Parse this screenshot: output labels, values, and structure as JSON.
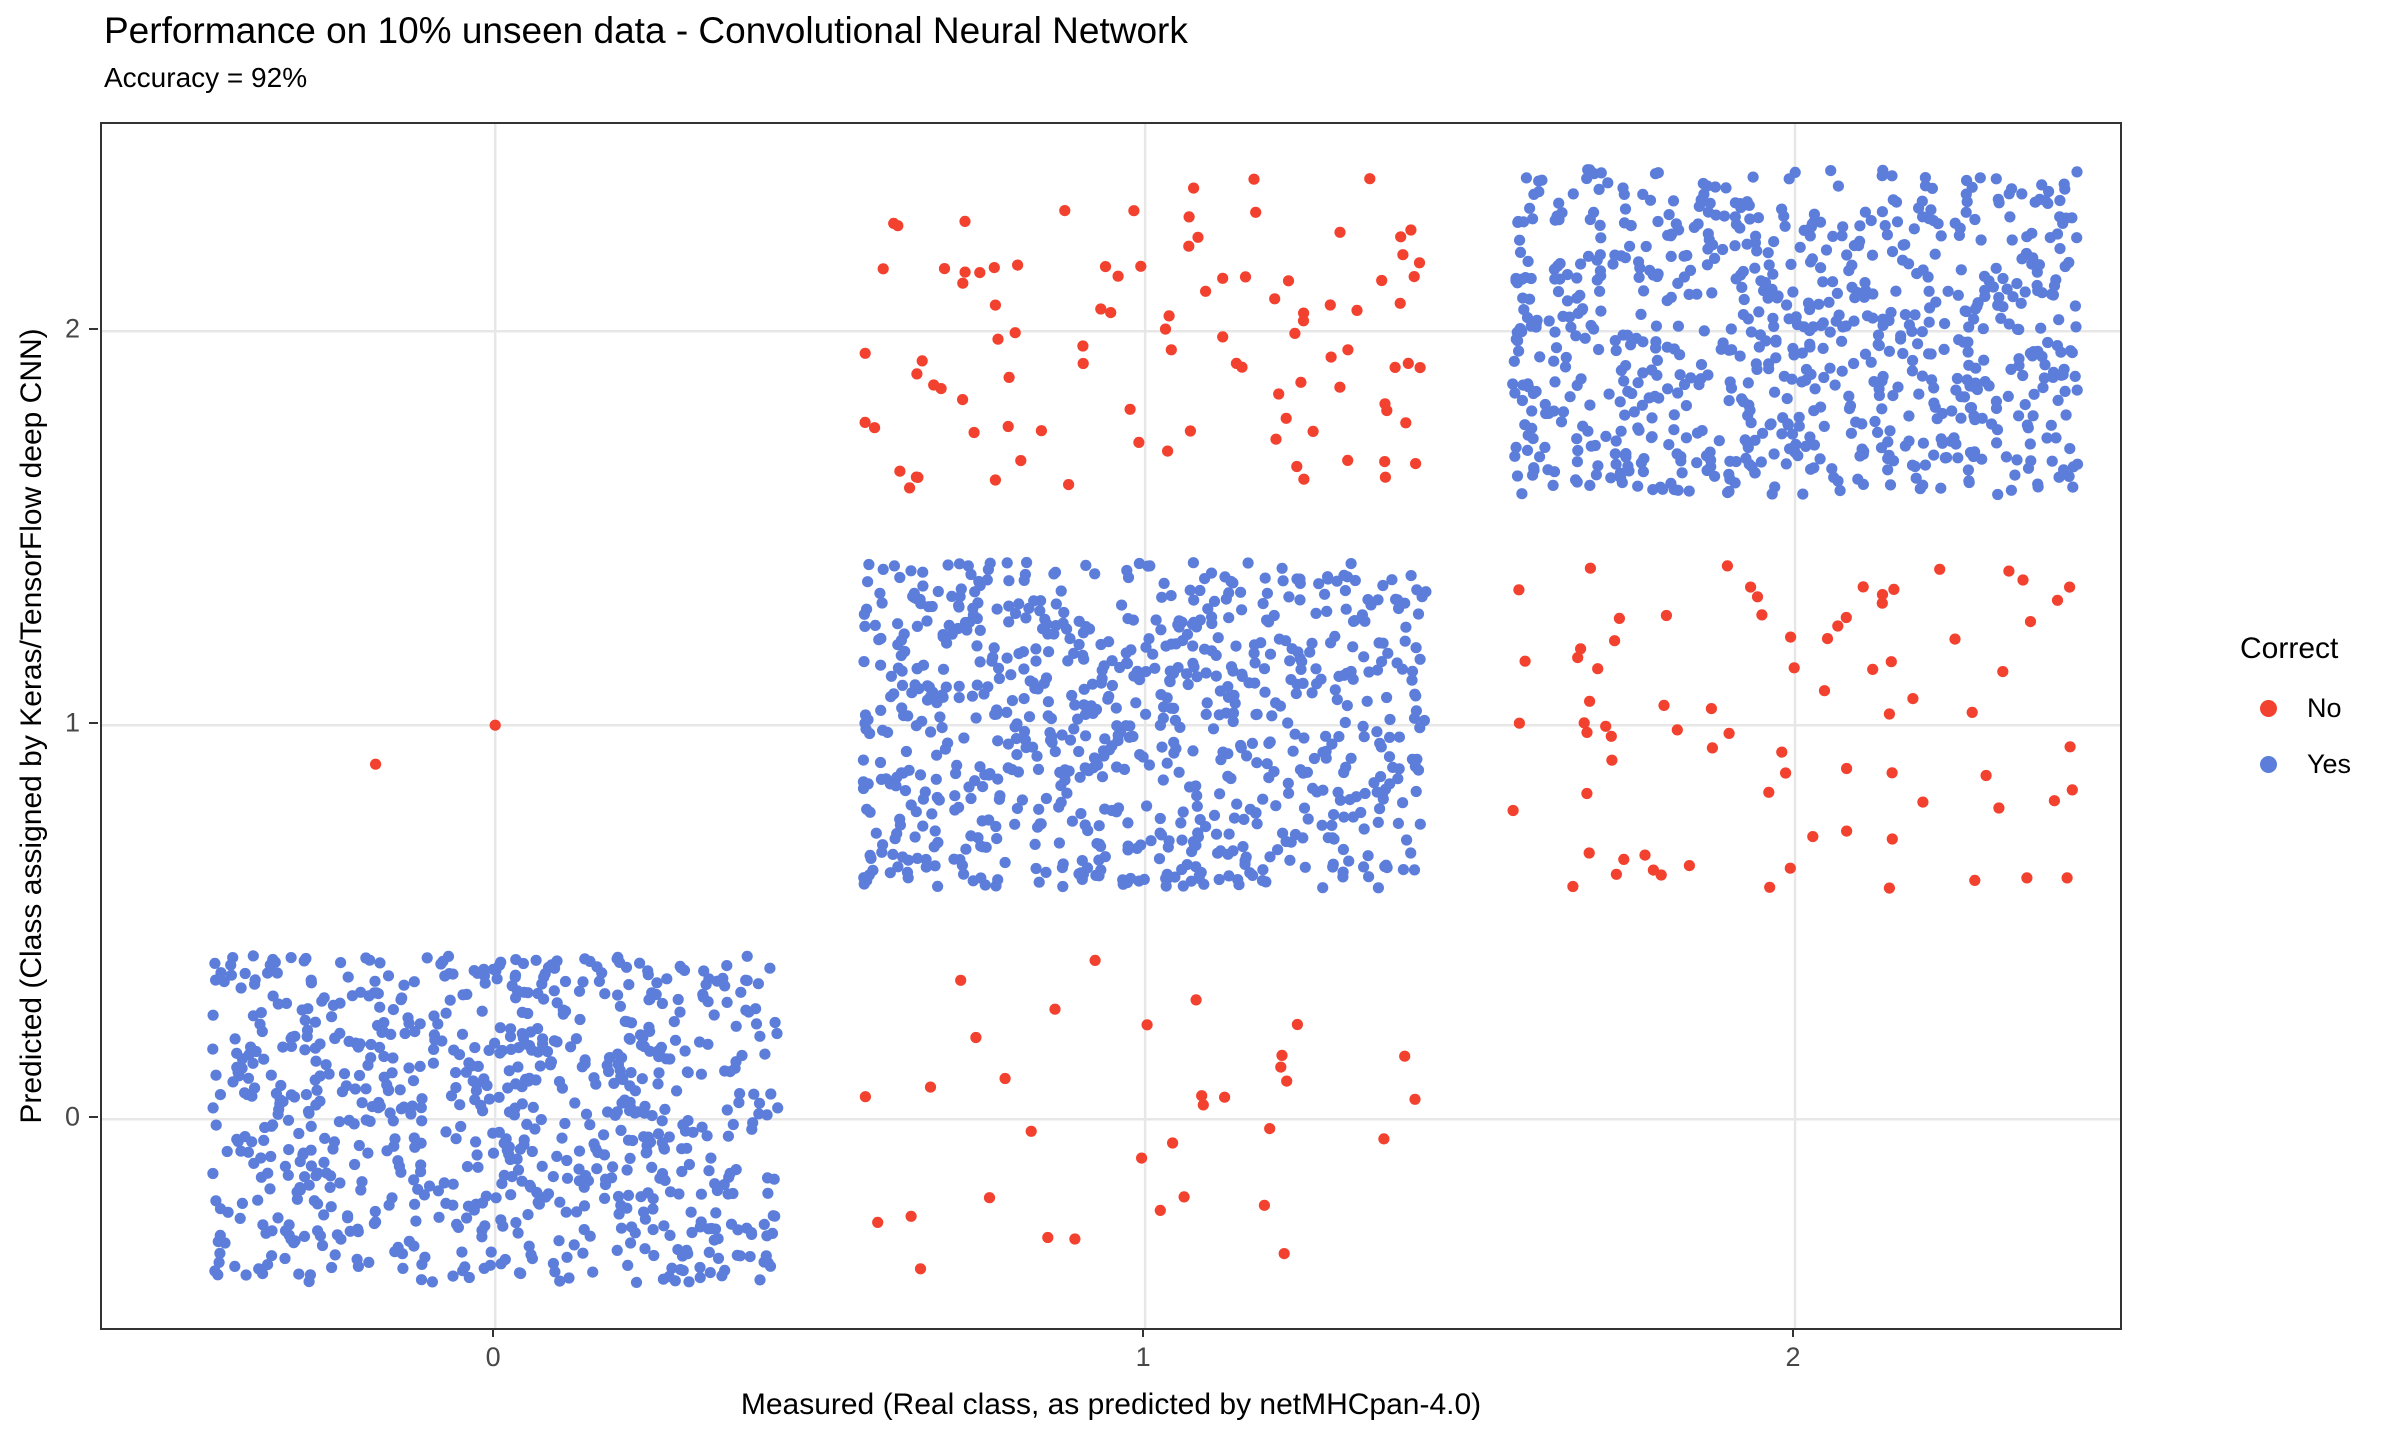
{
  "chart_data": {
    "type": "scatter",
    "variant": "jittered-categorical",
    "title": "Performance on 10% unseen data - Convolutional Neural Network",
    "subtitle": "Accuracy = 92%",
    "xlabel": "Measured (Real class, as predicted by netMHCpan-4.0)",
    "ylabel": "Predicted (Class assigned by Keras/TensorFlow deep CNN)",
    "x_ticks": [
      0,
      1,
      2
    ],
    "y_ticks": [
      0,
      1,
      2
    ],
    "xlim": [
      -0.605,
      2.5
    ],
    "ylim": [
      -0.53,
      2.526
    ],
    "grid": "major-only",
    "grid_color": "#E7E7E7",
    "panel_border_color": "#333333",
    "tick_label_color": "#474747",
    "point_radius": 5.6,
    "jitter": {
      "half_width_x": 0.435,
      "half_width_y": 0.415
    },
    "seed": 7,
    "colors": {
      "no": "#F2412F",
      "yes": "#5C7EDA"
    },
    "legend": {
      "title": "Correct",
      "position": "right",
      "entries": [
        {
          "label": "No",
          "color": "#F2412F"
        },
        {
          "label": "Yes",
          "color": "#5C7EDA"
        }
      ]
    },
    "clusters": [
      {
        "measured": 0,
        "predicted": 0,
        "correct": "Yes",
        "count": 800
      },
      {
        "measured": 1,
        "predicted": 1,
        "correct": "Yes",
        "count": 810
      },
      {
        "measured": 2,
        "predicted": 2,
        "correct": "Yes",
        "count": 795
      },
      {
        "measured": 1,
        "predicted": 0,
        "correct": "No",
        "count": 33
      },
      {
        "measured": 1,
        "predicted": 2,
        "correct": "No",
        "count": 96
      },
      {
        "measured": 2,
        "predicted": 1,
        "correct": "No",
        "count": 78
      }
    ],
    "extra_points": [
      {
        "measured": 0,
        "predicted": 1,
        "correct": "No",
        "x": 0.0,
        "y": 1.0
      },
      {
        "measured": 0,
        "predicted": 1,
        "correct": "No",
        "x": -0.184,
        "y": 0.901
      }
    ]
  }
}
